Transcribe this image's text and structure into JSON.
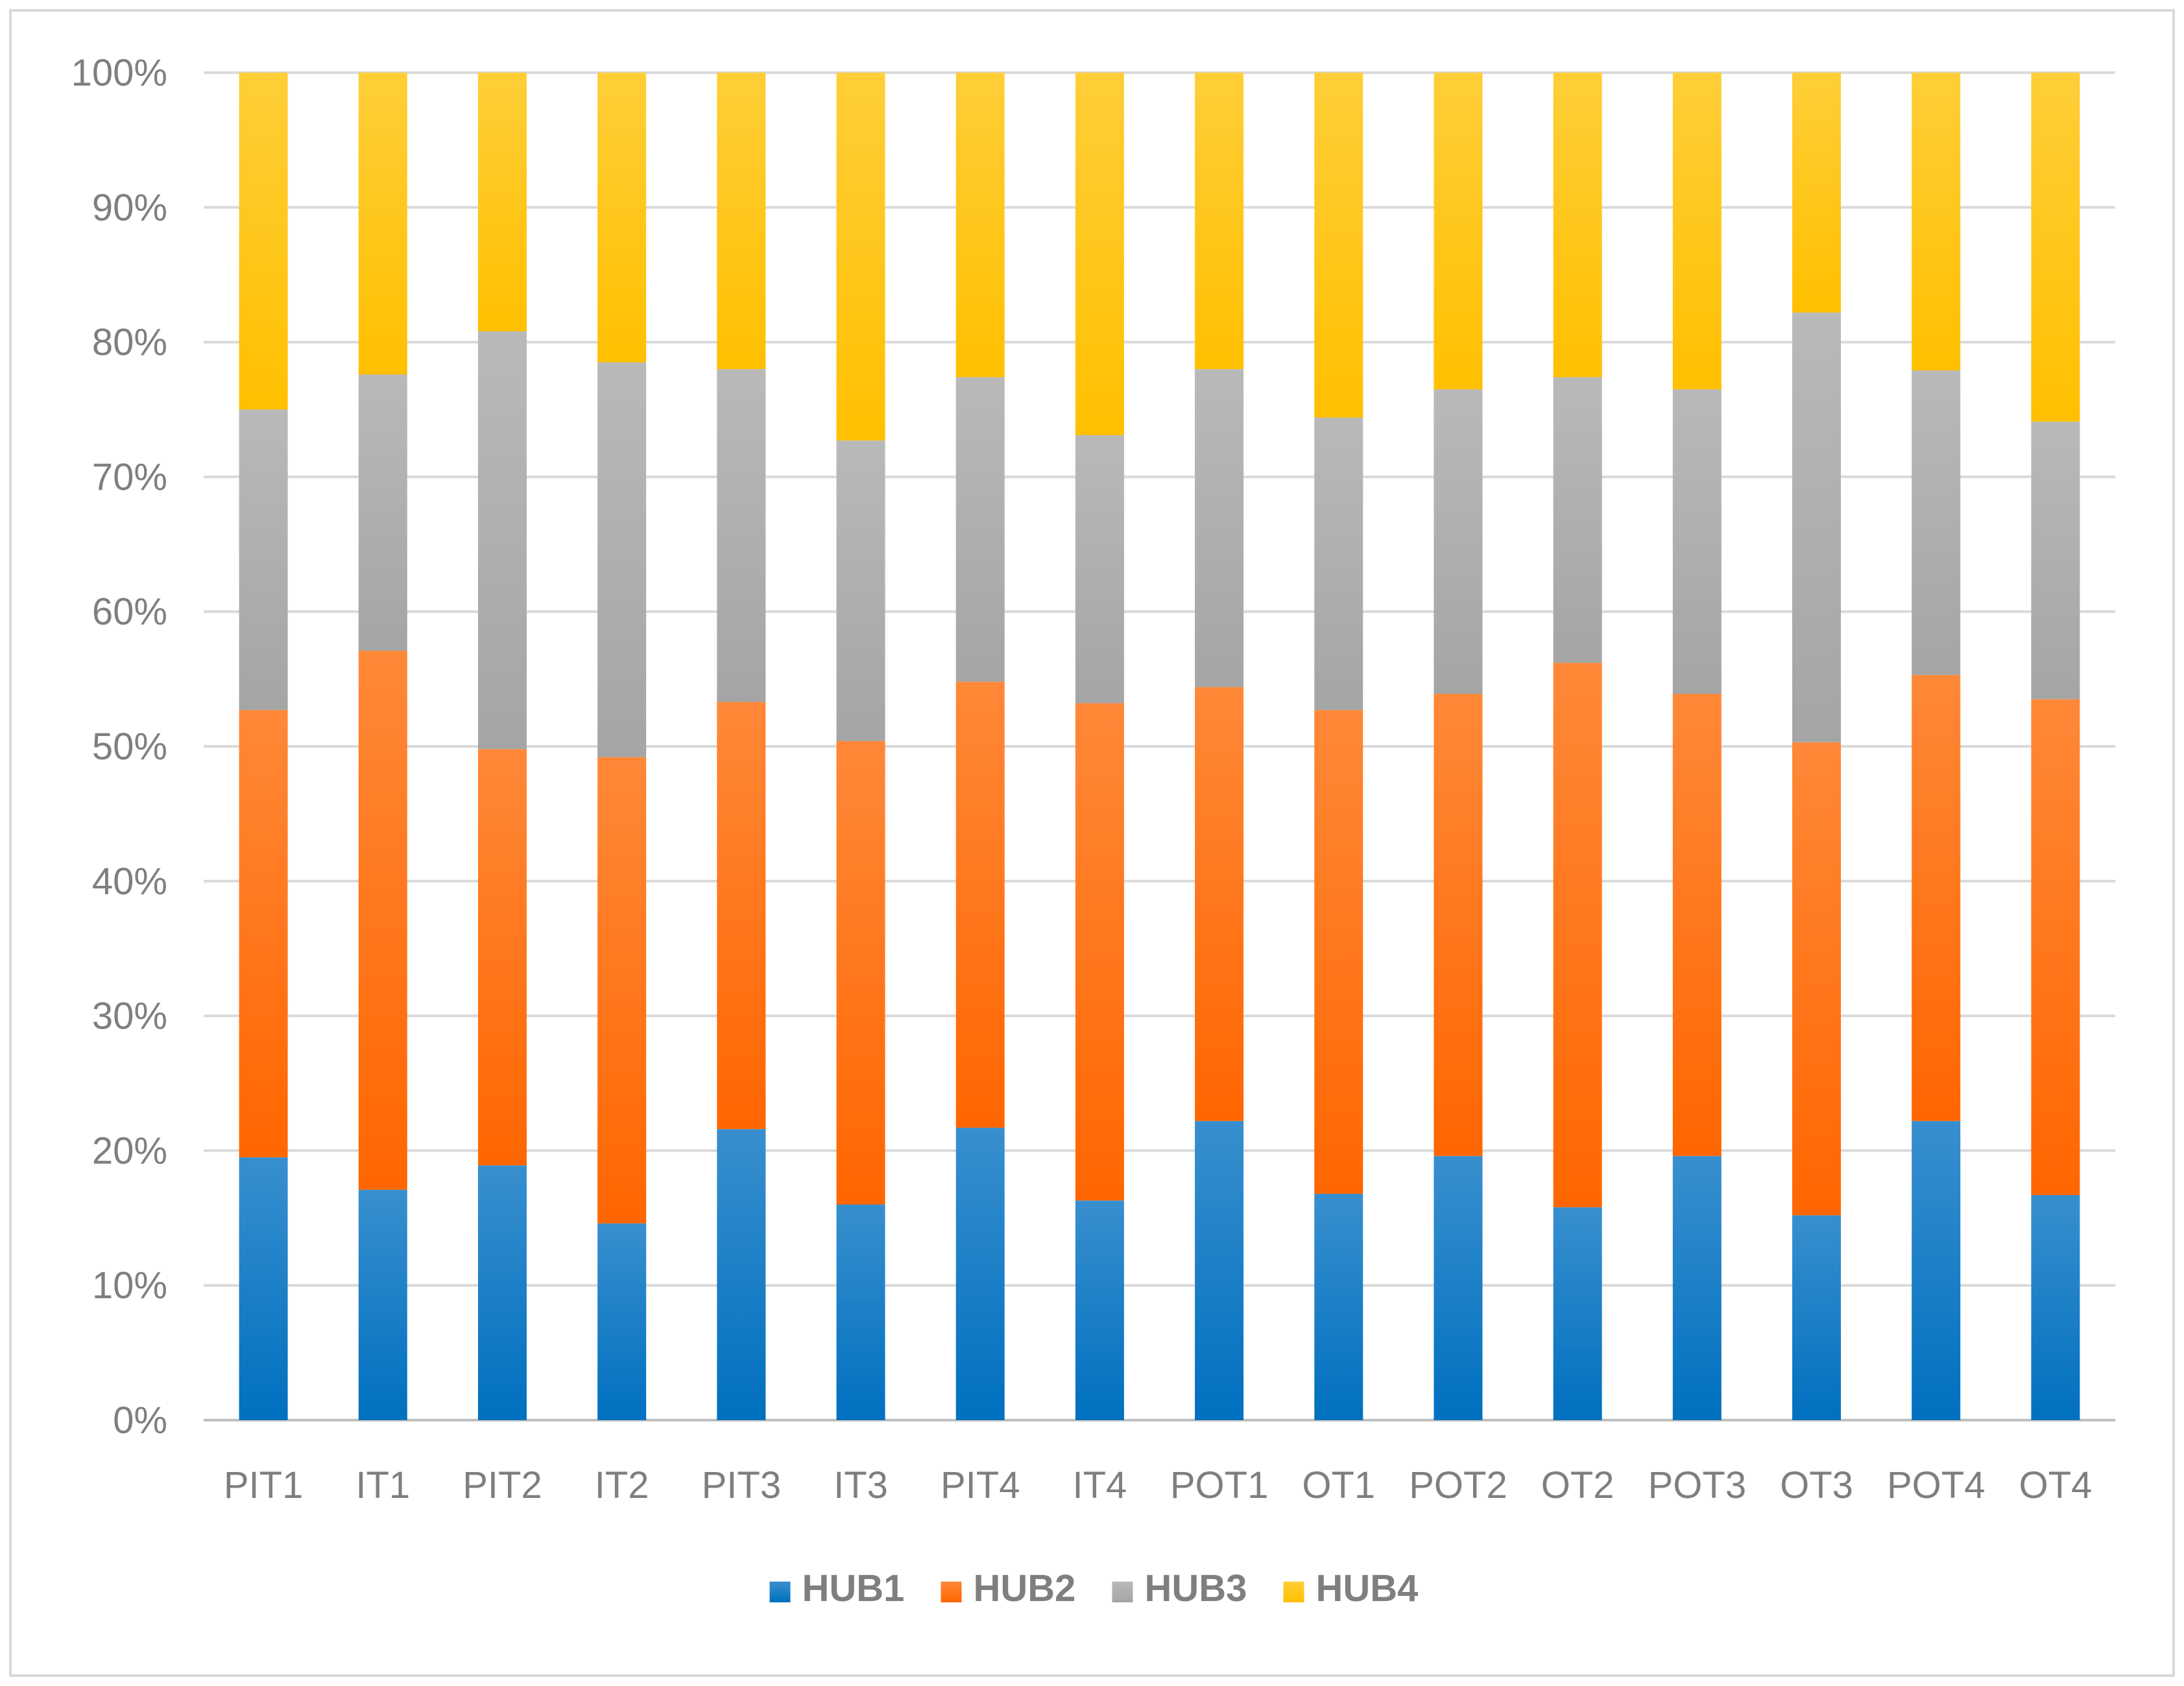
{
  "chart_data": {
    "type": "bar",
    "stacked": true,
    "percent_stacked": true,
    "categories": [
      "PIT1",
      "IT1",
      "PIT2",
      "IT2",
      "PIT3",
      "IT3",
      "PIT4",
      "IT4",
      "POT1",
      "OT1",
      "POT2",
      "OT2",
      "POT3",
      "OT3",
      "POT4",
      "OT4"
    ],
    "series": [
      {
        "name": "HUB1",
        "color": "#0070c0",
        "values": [
          19.5,
          17.1,
          18.9,
          14.6,
          21.6,
          16.0,
          21.7,
          16.3,
          22.2,
          16.8,
          19.6,
          15.8,
          19.6,
          15.2,
          22.2,
          16.7
        ]
      },
      {
        "name": "HUB2",
        "color": "#ff6600",
        "values": [
          33.2,
          40.0,
          30.9,
          34.6,
          31.7,
          34.4,
          33.1,
          36.9,
          32.2,
          35.9,
          34.3,
          40.4,
          34.3,
          35.1,
          33.1,
          36.8
        ]
      },
      {
        "name": "HUB3",
        "color": "#a5a5a5",
        "values": [
          22.3,
          20.5,
          31.0,
          29.3,
          24.7,
          22.3,
          22.6,
          19.9,
          23.6,
          21.7,
          22.6,
          21.2,
          22.6,
          31.9,
          22.6,
          20.6
        ]
      },
      {
        "name": "HUB4",
        "color": "#ffc000",
        "values": [
          25.0,
          22.4,
          19.2,
          21.5,
          22.0,
          27.3,
          22.6,
          26.9,
          22.0,
          25.6,
          23.5,
          22.6,
          23.5,
          17.8,
          22.1,
          25.9
        ]
      }
    ],
    "y_ticks": [
      "0%",
      "10%",
      "20%",
      "30%",
      "40%",
      "50%",
      "60%",
      "70%",
      "80%",
      "90%",
      "100%"
    ],
    "ylim": [
      0,
      100
    ],
    "grid": true,
    "legend": "bottom"
  }
}
